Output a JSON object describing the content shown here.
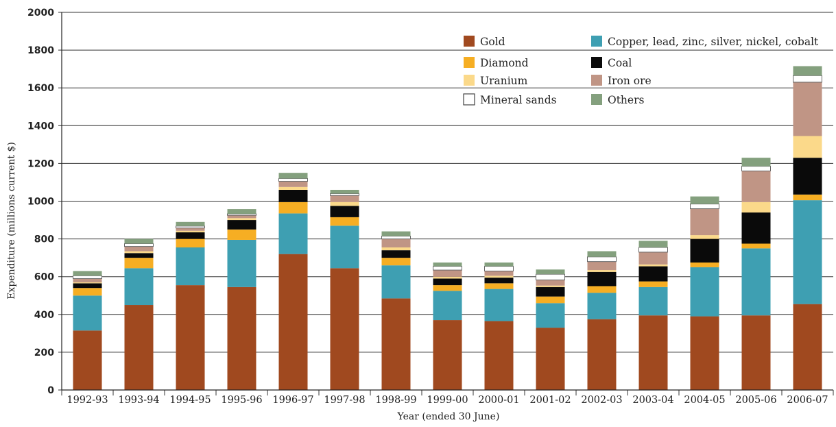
{
  "chart_data": {
    "type": "bar",
    "stacked": true,
    "title": "",
    "xlabel": "Year (ended 30 June)",
    "ylabel": "Expenditure (millions current $)",
    "ylim": [
      0,
      2000
    ],
    "yticks": [
      "0",
      "200",
      "400",
      "600",
      "800",
      "1000",
      "1200",
      "1400",
      "1600",
      "1800",
      "2000"
    ],
    "ytick_values": [
      0,
      200,
      400,
      600,
      800,
      1000,
      1200,
      1400,
      1600,
      1800,
      2000
    ],
    "grid": "horizontal",
    "legend_position": "top-right",
    "categories": [
      "1992-93",
      "1993-94",
      "1994-95",
      "1995-96",
      "1996-97",
      "1997-98",
      "1998-99",
      "1999-00",
      "2000-01",
      "2001-02",
      "2002-03",
      "2003-04",
      "2004-05",
      "2005-06",
      "2006-07"
    ],
    "series": [
      {
        "name": "Gold",
        "color": "#a0491f",
        "values": [
          315,
          450,
          555,
          545,
          720,
          645,
          485,
          370,
          365,
          330,
          375,
          395,
          390,
          395,
          455
        ]
      },
      {
        "name": "Copper, lead, zinc, silver, nickel, cobalt",
        "color": "#3e9fb2",
        "values": [
          185,
          195,
          200,
          250,
          215,
          225,
          175,
          155,
          170,
          130,
          140,
          150,
          260,
          355,
          550
        ]
      },
      {
        "name": "Diamond",
        "color": "#f6ae23",
        "values": [
          40,
          55,
          45,
          55,
          60,
          45,
          40,
          30,
          30,
          35,
          35,
          30,
          25,
          25,
          30
        ]
      },
      {
        "name": "Coal",
        "color": "#0a0a0a",
        "values": [
          25,
          25,
          35,
          50,
          65,
          60,
          40,
          35,
          30,
          50,
          75,
          80,
          125,
          165,
          195
        ]
      },
      {
        "name": "Uranium",
        "color": "#fbd98a",
        "values": [
          5,
          10,
          8,
          10,
          15,
          20,
          15,
          10,
          10,
          8,
          10,
          10,
          20,
          55,
          115
        ]
      },
      {
        "name": "Iron ore",
        "color": "#c09585",
        "values": [
          20,
          25,
          15,
          15,
          30,
          35,
          45,
          35,
          25,
          30,
          45,
          65,
          140,
          165,
          285
        ]
      },
      {
        "name": "Mineral sands",
        "color": "#ffffff",
        "values": [
          15,
          15,
          10,
          8,
          15,
          10,
          15,
          20,
          25,
          30,
          25,
          25,
          25,
          25,
          35
        ]
      },
      {
        "name": "Others",
        "color": "#84a07e",
        "values": [
          25,
          25,
          22,
          25,
          30,
          20,
          25,
          20,
          20,
          25,
          30,
          35,
          40,
          45,
          50
        ]
      }
    ],
    "legend": [
      {
        "label": "Gold",
        "color": "#a0491f"
      },
      {
        "label": "Copper, lead, zinc, silver, nickel, cobalt",
        "color": "#3e9fb2"
      },
      {
        "label": "Diamond",
        "color": "#f6ae23"
      },
      {
        "label": "Coal",
        "color": "#0a0a0a"
      },
      {
        "label": "Uranium",
        "color": "#fbd98a"
      },
      {
        "label": "Iron ore",
        "color": "#c09585"
      },
      {
        "label": "Mineral sands",
        "color": "#ffffff"
      },
      {
        "label": "Others",
        "color": "#84a07e"
      }
    ]
  }
}
